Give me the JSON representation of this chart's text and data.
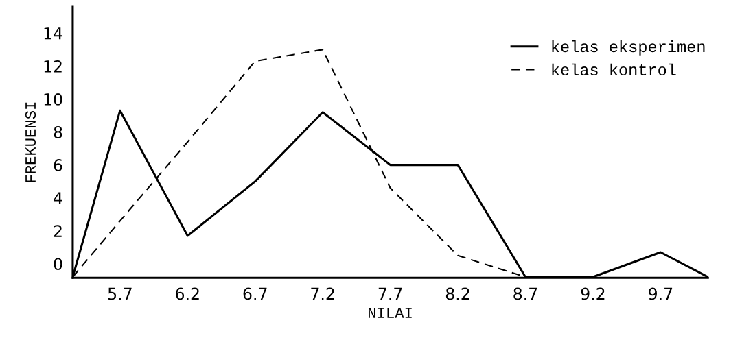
{
  "chart_data": {
    "type": "line",
    "xlabel": "NILAI",
    "ylabel": "FREKUENSI",
    "x": [
      5.35,
      5.7,
      6.2,
      6.7,
      7.2,
      7.7,
      8.2,
      8.7,
      9.2,
      9.7,
      10.05
    ],
    "series": [
      {
        "name": "kelas eksperimen",
        "color": "#000000",
        "line_style": "solid",
        "values": [
          -0.8,
          9.3,
          1.7,
          5.0,
          9.2,
          6.0,
          6.0,
          -0.8,
          -0.8,
          0.7,
          -0.8
        ]
      },
      {
        "name": "kelas kontrol",
        "color": "#000000",
        "line_style": "dashed",
        "values": [
          -0.8,
          2.6,
          7.4,
          12.3,
          13.0,
          4.6,
          0.5,
          -0.8,
          null,
          null,
          null
        ]
      }
    ],
    "xlim": [
      5.35,
      10.05
    ],
    "ylim": [
      -0.85,
      15.6
    ],
    "xticks": [
      5.7,
      6.2,
      6.7,
      7.2,
      7.7,
      8.2,
      8.7,
      9.2,
      9.7
    ],
    "yticks": [
      0,
      2,
      4,
      6,
      8,
      10,
      12,
      14
    ],
    "grid": false,
    "legend": "top right",
    "marker": "none"
  }
}
